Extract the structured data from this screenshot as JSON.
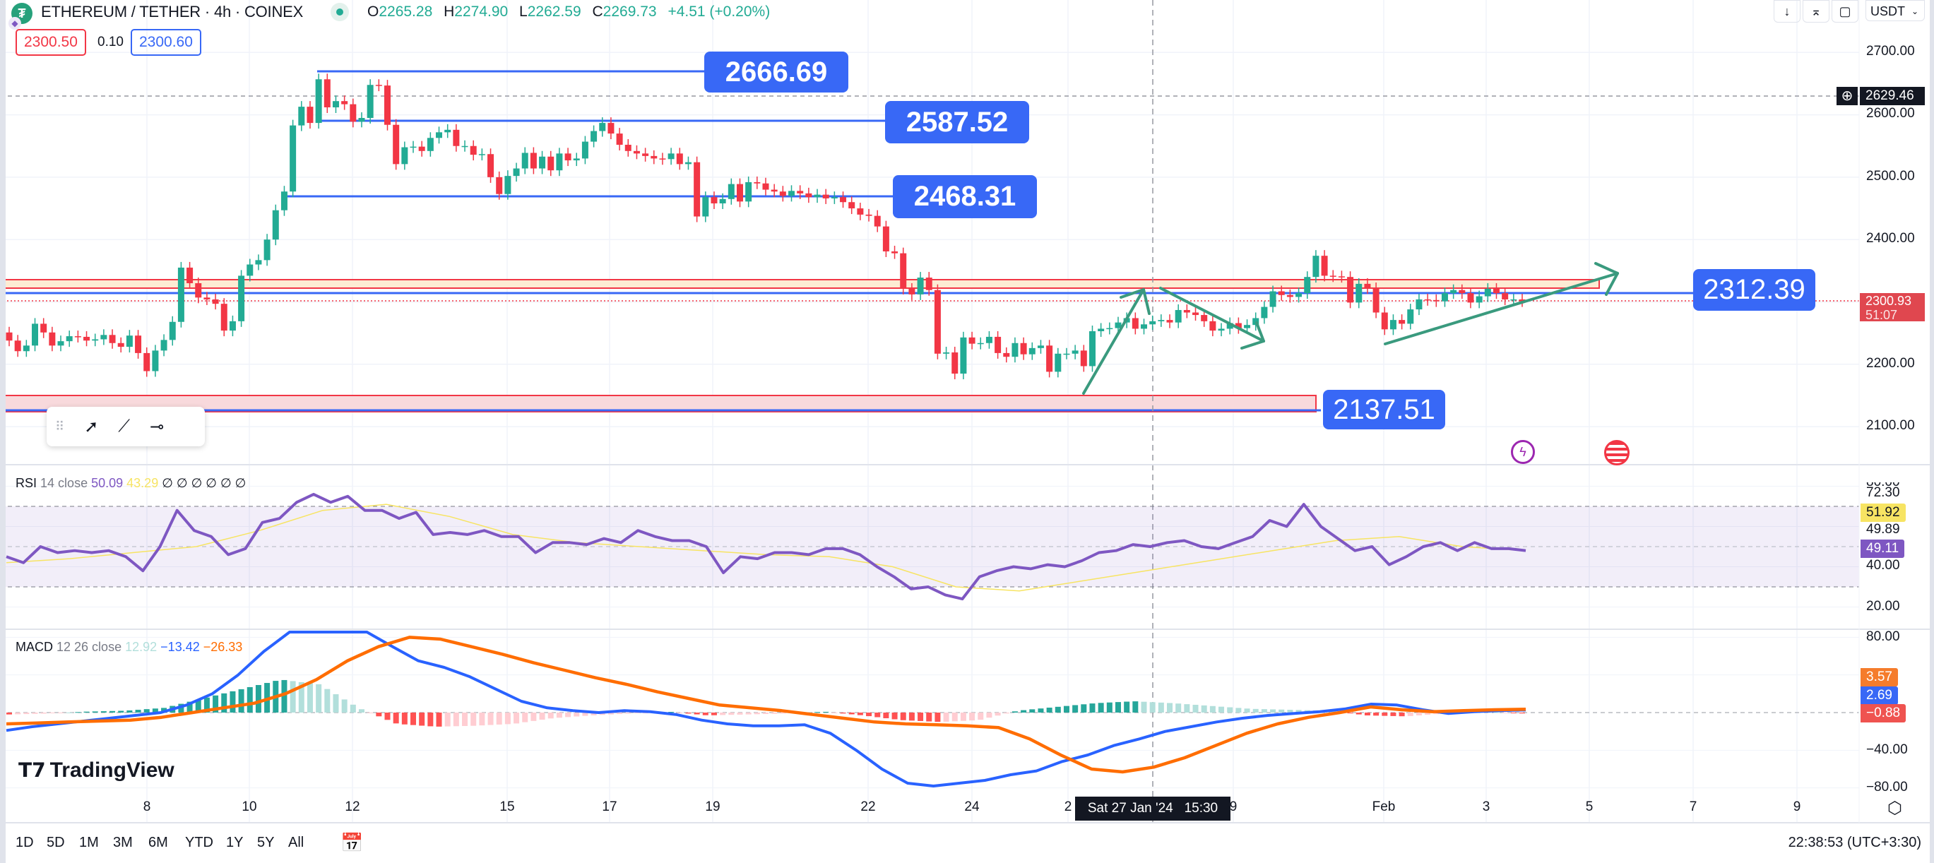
{
  "header": {
    "symbol_title": "ETHEREUM / TETHER · 4h · COINEX",
    "ohlc": [
      {
        "key": "O",
        "value": "2265.28"
      },
      {
        "key": "H",
        "value": "2274.90"
      },
      {
        "key": "L",
        "value": "2262.59"
      },
      {
        "key": "C",
        "value": "2269.73"
      }
    ],
    "change": "+4.51 (+0.20%)",
    "sell_price": "2300.50",
    "spread": "0.10",
    "buy_price": "2300.60",
    "currency": "USDT",
    "icons": [
      "arrow-down-icon",
      "collapse-icon",
      "fullscreen-icon"
    ]
  },
  "price_axis": {
    "ticks": [
      "2700.00",
      "2600.00",
      "2500.00",
      "2400.00",
      "2200.00",
      "2100.00"
    ],
    "crosshair_price": "2629.46",
    "last_price": "2300.93",
    "countdown": "51:07"
  },
  "levels": {
    "l1": "2666.69",
    "l2": "2587.52",
    "l3": "2468.31",
    "l4": "2312.39",
    "l5": "2137.51"
  },
  "rsi": {
    "name": "RSI",
    "params": "14 close",
    "value": "50.09",
    "ma_value": "43.29",
    "empty_values": "∅ ∅ ∅ ∅ ∅ ∅",
    "axis_ticks": [
      "80.00",
      "72.30",
      "49.89",
      "40.00",
      "20.00"
    ],
    "tag_ma": "51.92",
    "tag_rsi": "49.11"
  },
  "macd": {
    "name": "MACD",
    "params": "12 26 close",
    "hist_value": "12.92",
    "macd_value": "−13.42",
    "signal_value": "−26.33",
    "axis_ticks": [
      "80.00",
      "−40.00",
      "−80.00"
    ],
    "tag_signal": "3.57",
    "tag_macd": "2.69",
    "tag_hist": "−0.88"
  },
  "time_axis": {
    "labels": [
      "8",
      "10",
      "12",
      "15",
      "17",
      "19",
      "22",
      "24",
      "2",
      "9",
      "Feb",
      "3",
      "5",
      "7",
      "9"
    ],
    "crosshair_time": "Sat 27 Jan '24   15:30"
  },
  "bottom_bar": {
    "ranges": [
      "1D",
      "5D",
      "1M",
      "3M",
      "6M",
      "YTD",
      "1Y",
      "5Y",
      "All"
    ],
    "clock": "22:38:53 (UTC+3:30)"
  },
  "logo": "TradingView",
  "colors": {
    "up": "#22ab94",
    "down": "#f23645",
    "level_blue": "#3868f6",
    "rsi": "#7e57c2",
    "rsi_ma": "#f7e463",
    "macd": "#2962ff",
    "signal": "#ff6d00",
    "arrow": "#3a9a7e"
  },
  "chart_data": [
    {
      "type": "candlestick",
      "timeframe": "4h",
      "first_open": 2251,
      "closes": [
        2238,
        2221,
        2230,
        2265,
        2251,
        2230,
        2237,
        2245,
        2244,
        2238,
        2240,
        2247,
        2234,
        2228,
        2246,
        2218,
        2189,
        2222,
        2239,
        2268,
        2355,
        2330,
        2307,
        2304,
        2297,
        2254,
        2269,
        2342,
        2360,
        2367,
        2400,
        2447,
        2477,
        2583,
        2613,
        2587,
        2657,
        2612,
        2622,
        2617,
        2589,
        2595,
        2648,
        2647,
        2584,
        2521,
        2548,
        2549,
        2542,
        2563,
        2572,
        2576,
        2550,
        2550,
        2536,
        2537,
        2500,
        2473,
        2502,
        2514,
        2539,
        2514,
        2533,
        2511,
        2538,
        2527,
        2530,
        2557,
        2574,
        2587,
        2570,
        2552,
        2542,
        2538,
        2534,
        2530,
        2529,
        2538,
        2521,
        2524,
        2437,
        2468,
        2458,
        2465,
        2489,
        2461,
        2492,
        2490,
        2480,
        2477,
        2470,
        2478,
        2474,
        2468,
        2472,
        2466,
        2468,
        2460,
        2450,
        2440,
        2438,
        2421,
        2381,
        2378,
        2321,
        2312,
        2339,
        2319,
        2217,
        2219,
        2185,
        2243,
        2233,
        2234,
        2244,
        2218,
        2212,
        2234,
        2216,
        2226,
        2230,
        2188,
        2217,
        2217,
        2222,
        2197,
        2253,
        2257,
        2258,
        2267,
        2274,
        2257,
        2264,
        2269,
        2271,
        2267,
        2287,
        2283,
        2279,
        2269,
        2254,
        2257,
        2266,
        2258,
        2263,
        2274,
        2292,
        2317,
        2311,
        2308,
        2314,
        2340,
        2374,
        2342,
        2341,
        2340,
        2299,
        2329,
        2322,
        2283,
        2256,
        2271,
        2265,
        2288,
        2304,
        2303,
        2301,
        2314,
        2319,
        2314,
        2299,
        2309,
        2321,
        2314,
        2304,
        2304,
        2301
      ],
      "ylim": [
        2050,
        2740
      ]
    },
    {
      "type": "line",
      "name": "RSI 14 close",
      "ylim": [
        10,
        88
      ],
      "bands": [
        30,
        70
      ],
      "rsi": [
        45,
        42,
        50,
        47,
        48,
        47,
        48,
        45,
        38,
        50,
        68,
        58,
        55,
        46,
        49,
        62,
        64,
        72,
        76,
        72,
        75,
        68,
        68,
        64,
        67,
        56,
        57,
        56,
        58,
        55,
        55,
        47,
        52,
        52,
        51,
        54,
        52,
        58,
        55,
        53,
        53,
        50,
        37,
        45,
        44,
        47,
        47,
        46,
        49,
        49,
        46,
        40,
        35,
        29,
        30,
        26,
        24,
        35,
        38,
        40,
        39,
        41,
        40,
        43,
        47,
        48,
        51,
        50,
        52,
        53,
        50,
        49,
        52,
        55,
        63,
        60,
        71,
        60,
        54,
        48,
        50,
        41,
        45,
        50,
        52,
        48,
        52,
        49,
        49,
        48
      ],
      "rsi_ma": [
        42,
        44,
        47,
        50,
        58,
        68,
        71,
        65,
        56,
        52,
        50,
        48,
        46,
        45,
        40,
        30,
        28,
        33,
        38,
        43,
        48,
        53,
        55,
        50,
        48
      ]
    },
    {
      "type": "line",
      "name": "MACD 12 26 close",
      "ylim": [
        -95,
        85
      ],
      "macd": [
        -19,
        -15,
        -12,
        -9,
        -6,
        -3,
        0,
        8,
        20,
        40,
        65,
        90,
        95,
        90,
        86,
        70,
        55,
        48,
        38,
        25,
        12,
        5,
        2,
        0,
        2,
        1,
        -2,
        -8,
        -12,
        -14,
        -14,
        -13,
        -22,
        -40,
        -60,
        -75,
        -78,
        -75,
        -72,
        -66,
        -62,
        -52,
        -45,
        -35,
        -28,
        -20,
        -15,
        -10,
        -6,
        -3,
        -1,
        1,
        4,
        9,
        8,
        3,
        -1,
        1,
        2,
        2.69
      ],
      "signal": [
        -12,
        -11,
        -10,
        -9,
        -8,
        -5,
        0,
        5,
        10,
        20,
        35,
        55,
        70,
        80,
        78,
        70,
        62,
        53,
        45,
        37,
        30,
        22,
        15,
        8,
        5,
        2,
        -2,
        -6,
        -10,
        -12,
        -13,
        -14,
        -16,
        -28,
        -45,
        -60,
        -63,
        -58,
        -48,
        -35,
        -22,
        -12,
        -5,
        0,
        6,
        3,
        1,
        2,
        3,
        3.57
      ],
      "histogram": [
        -2,
        -1,
        1,
        2,
        5,
        15,
        25,
        35,
        30,
        5,
        -12,
        -15,
        -14,
        -12,
        -6,
        -3,
        -1,
        1,
        -3,
        -2,
        -1,
        1,
        -3,
        -8,
        -10,
        -8,
        2,
        6,
        10,
        12,
        10,
        7,
        4,
        3,
        2,
        -3,
        -4,
        -1,
        1,
        -0.88
      ],
      "zero_line": 0
    }
  ]
}
